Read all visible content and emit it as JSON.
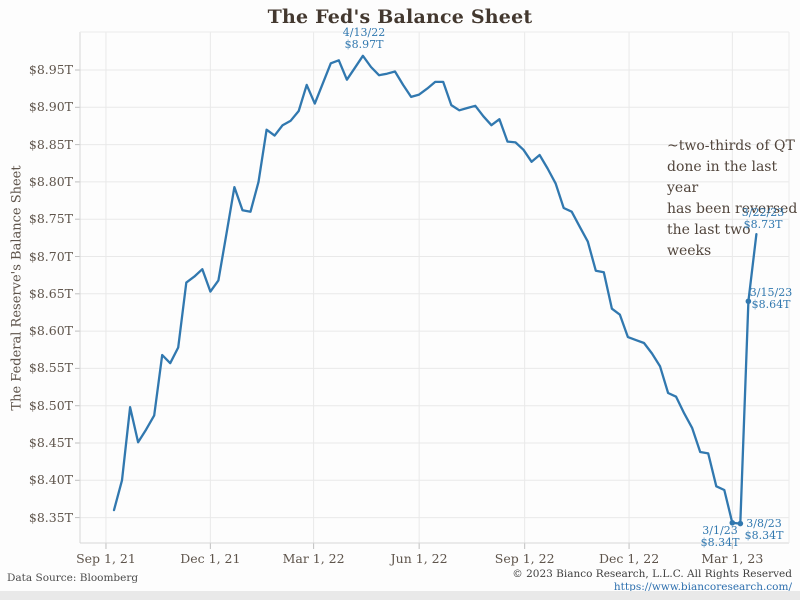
{
  "title": "The Fed's Balance Sheet",
  "y_axis_title": "The Federal Reserve's Balance Sheet",
  "annotations": {
    "qt_note": "~two-thirds of QT\ndone in the last year\nhas been reversed\nthe last two weeks"
  },
  "footer": {
    "source": "Data Source: Bloomberg",
    "copyright": "© 2023 Bianco Research, L.L.C. All Rights Reserved",
    "link": "https://www.biancoresearch.com/"
  },
  "colors": {
    "line": "#3178af",
    "callout_text": "#3178af",
    "title_text": "#43382f",
    "axis_text": "#5e544b",
    "grid": "#e9e9e9"
  },
  "chart_data": {
    "type": "line",
    "title": "The Fed's Balance Sheet",
    "ylabel": "The Federal Reserve's Balance Sheet",
    "unit": "trillions of USD",
    "frequency": "weekly",
    "start_date": "2021-09-08",
    "end_date": "2023-03-22",
    "ylim": [
      8.32,
      9.0
    ],
    "grid": true,
    "x_tick_labels": [
      "Sep 1, 21",
      "Dec 1, 21",
      "Mar 1, 22",
      "Jun 1, 22",
      "Sep 1, 22",
      "Dec 1, 22",
      "Mar 1, 23"
    ],
    "y_tick_values": [
      8.95,
      8.9,
      8.85,
      8.8,
      8.75,
      8.7,
      8.65,
      8.6,
      8.55,
      8.5,
      8.45,
      8.4,
      8.35
    ],
    "y_tick_labels": [
      "$8.95T",
      "$8.90T",
      "$8.85T",
      "$8.80T",
      "$8.75T",
      "$8.70T",
      "$8.65T",
      "$8.60T",
      "$8.55T",
      "$8.50T",
      "$8.45T",
      "$8.40T",
      "$8.35T"
    ],
    "values": [
      8.36,
      8.4,
      8.498,
      8.451,
      8.468,
      8.487,
      8.568,
      8.557,
      8.578,
      8.665,
      8.673,
      8.683,
      8.653,
      8.668,
      8.73,
      8.793,
      8.762,
      8.76,
      8.8,
      8.87,
      8.862,
      8.876,
      8.882,
      8.895,
      8.93,
      8.905,
      8.932,
      8.959,
      8.963,
      8.937,
      8.953,
      8.969,
      8.954,
      8.943,
      8.945,
      8.948,
      8.93,
      8.914,
      8.917,
      8.925,
      8.934,
      8.934,
      8.903,
      8.896,
      8.899,
      8.902,
      8.888,
      8.876,
      8.884,
      8.854,
      8.853,
      8.843,
      8.827,
      8.836,
      8.818,
      8.798,
      8.765,
      8.76,
      8.74,
      8.72,
      8.681,
      8.679,
      8.63,
      8.622,
      8.592,
      8.588,
      8.584,
      8.57,
      8.553,
      8.517,
      8.512,
      8.49,
      8.47,
      8.438,
      8.436,
      8.392,
      8.387,
      8.343,
      8.342,
      8.64,
      8.73
    ],
    "marked_weeks": [
      77,
      78,
      79
    ],
    "callouts": [
      {
        "week_index": 31,
        "date": "4/13/22",
        "label": "$8.97T",
        "value": 8.97
      },
      {
        "week_index": 80,
        "date": "3/22/23",
        "label": "$8.73T",
        "value": 8.73
      },
      {
        "week_index": 79,
        "date": "3/15/23",
        "label": "$8.64T",
        "value": 8.64
      },
      {
        "week_index": 78,
        "date": "3/8/23",
        "label": "$8.34T",
        "value": 8.34
      },
      {
        "week_index": 77,
        "date": "3/1/23",
        "label": "$8.34T",
        "value": 8.34
      }
    ]
  }
}
